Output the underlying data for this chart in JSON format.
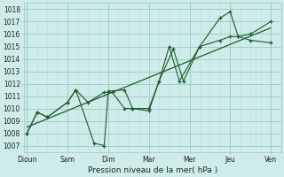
{
  "x_labels": [
    "Dioun",
    "Sam",
    "Dim",
    "Mar",
    "Mer",
    "Jeu",
    "Ven"
  ],
  "xlabel": "Pression niveau de la mer( hPa )",
  "ylim": [
    1006.5,
    1018.5
  ],
  "yticks": [
    1007,
    1008,
    1009,
    1010,
    1011,
    1012,
    1013,
    1014,
    1015,
    1016,
    1017,
    1018
  ],
  "bg_color": "#ceecea",
  "grid_major_color": "#9ecfca",
  "grid_minor_color": "#b8e0dc",
  "line_color": "#1a5c2a",
  "series1_x": [
    0.0,
    0.5,
    1.0,
    2.0,
    2.4,
    3.3,
    3.8,
    4.0,
    4.8,
    5.2,
    6.0,
    6.5,
    7.2,
    7.7,
    8.5,
    9.5,
    10.0,
    10.4,
    11.0,
    12.0
  ],
  "series1_y": [
    1008.0,
    1009.7,
    1009.3,
    1010.5,
    1011.5,
    1007.2,
    1007.0,
    1011.4,
    1011.5,
    1010.0,
    1009.8,
    1012.2,
    1014.8,
    1012.2,
    1015.0,
    1017.3,
    1017.8,
    1015.8,
    1016.0,
    1017.0
  ],
  "series2_x": [
    0.0,
    0.5,
    1.0,
    2.0,
    2.4,
    3.0,
    3.8,
    4.2,
    4.8,
    5.2,
    6.0,
    6.5,
    7.0,
    7.5,
    8.5,
    9.5,
    10.0,
    10.4,
    11.0,
    12.0
  ],
  "series2_y": [
    1008.0,
    1009.7,
    1009.3,
    1010.5,
    1011.5,
    1010.5,
    1011.3,
    1011.3,
    1010.0,
    1010.0,
    1010.0,
    1012.2,
    1015.0,
    1012.2,
    1015.0,
    1015.5,
    1015.8,
    1015.8,
    1015.5,
    1015.3
  ],
  "trend_x": [
    0.0,
    12.0
  ],
  "trend_y": [
    1008.5,
    1016.5
  ],
  "x_day_ticks": [
    0,
    2,
    4,
    6,
    8,
    10,
    12
  ],
  "x_minor_spacing": 0.5,
  "xlim": [
    -0.15,
    12.5
  ]
}
